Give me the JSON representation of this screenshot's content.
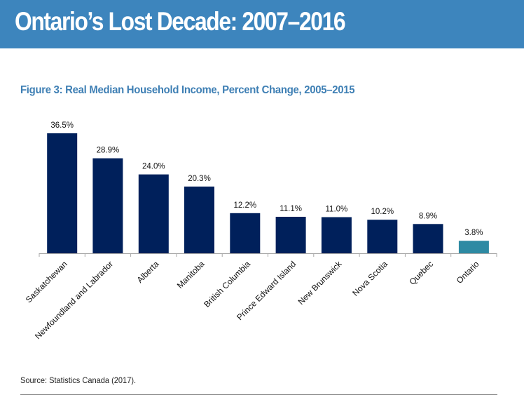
{
  "header": {
    "title": "Ontario’s Lost Decade: 2007–2016",
    "background_color": "#3d85bd"
  },
  "figure": {
    "title": "Figure 3: Real Median Household Income, Percent Change, 2005–2015",
    "source": "Source: Statistics Canada (2017)."
  },
  "chart_data": {
    "type": "bar",
    "title": "Figure 3: Real Median Household Income, Percent Change, 2005–2015",
    "xlabel": "",
    "ylabel": "",
    "ylim": [
      0,
      36.5
    ],
    "grid": false,
    "legend": "none",
    "categories": [
      "Saskatchewan",
      "Newfoundland  and Labrador",
      "Alberta",
      "Manitoba",
      "British  Columbia",
      "Prince Edward  Island",
      "New Brunswick",
      "Nova Scotia",
      "Quebec",
      "Ontario"
    ],
    "values": [
      36.5,
      28.9,
      24.0,
      20.3,
      12.2,
      11.1,
      11.0,
      10.2,
      8.9,
      3.8
    ],
    "data_labels": [
      "36.5%",
      "28.9%",
      "24.0%",
      "20.3%",
      "12.2%",
      "11.1%",
      "11.0%",
      "10.2%",
      "8.9%",
      "3.8%"
    ],
    "colors": {
      "default": "#00205b",
      "highlight": "#2e8aa3",
      "highlight_category": "Ontario",
      "axis": "#a6a6a6"
    }
  }
}
